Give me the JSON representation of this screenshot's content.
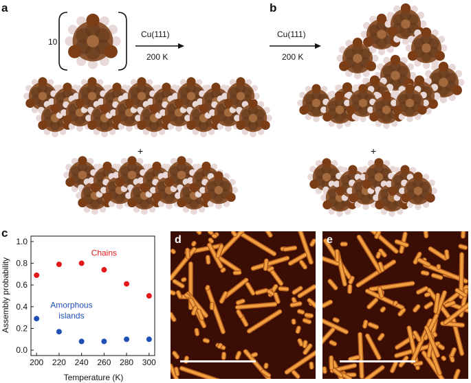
{
  "panels": {
    "a": {
      "label": "a",
      "monomer_count": "10",
      "substrate": "Cu(111)",
      "temperature": "200 K",
      "plus": "+"
    },
    "b": {
      "label": "b",
      "substrate": "Cu(111)",
      "temperature": "200 K",
      "plus": "+"
    },
    "c": {
      "label": "c"
    },
    "d": {
      "label": "d"
    },
    "e": {
      "label": "e"
    }
  },
  "colors": {
    "carbon": "#8a5530",
    "carbon_dark": "#5e3519",
    "bromine": "#7a3d16",
    "hydrogen": "#e8d8d8",
    "chains": "#e31a1c",
    "islands": "#1f4fb5",
    "stm_bg": "#3a0e04",
    "stm_feature": "#f0a040"
  },
  "chart_data": {
    "type": "scatter",
    "xlabel": "Temperature (K)",
    "ylabel": "Assembly probability",
    "xlim": [
      195,
      305
    ],
    "ylim": [
      -0.05,
      1.05
    ],
    "xticks": [
      "200",
      "220",
      "240",
      "260",
      "280",
      "300"
    ],
    "yticks": [
      "0.0",
      "0.2",
      "0.4",
      "0.6",
      "0.8",
      "1.0"
    ],
    "series": [
      {
        "name": "Chains",
        "color": "#e31a1c",
        "x": [
          200,
          220,
          240,
          260,
          280,
          300
        ],
        "y": [
          0.69,
          0.79,
          0.8,
          0.74,
          0.61,
          0.5
        ]
      },
      {
        "name": "Amorphous islands",
        "color": "#1f4fb5",
        "x": [
          200,
          220,
          240,
          260,
          280,
          300
        ],
        "y": [
          0.29,
          0.17,
          0.08,
          0.08,
          0.1,
          0.1
        ]
      }
    ],
    "annotations": [
      {
        "text": "Chains",
        "series": 0
      },
      {
        "text": "Amorphous",
        "text2": "islands",
        "series": 1
      }
    ],
    "grid": false
  }
}
